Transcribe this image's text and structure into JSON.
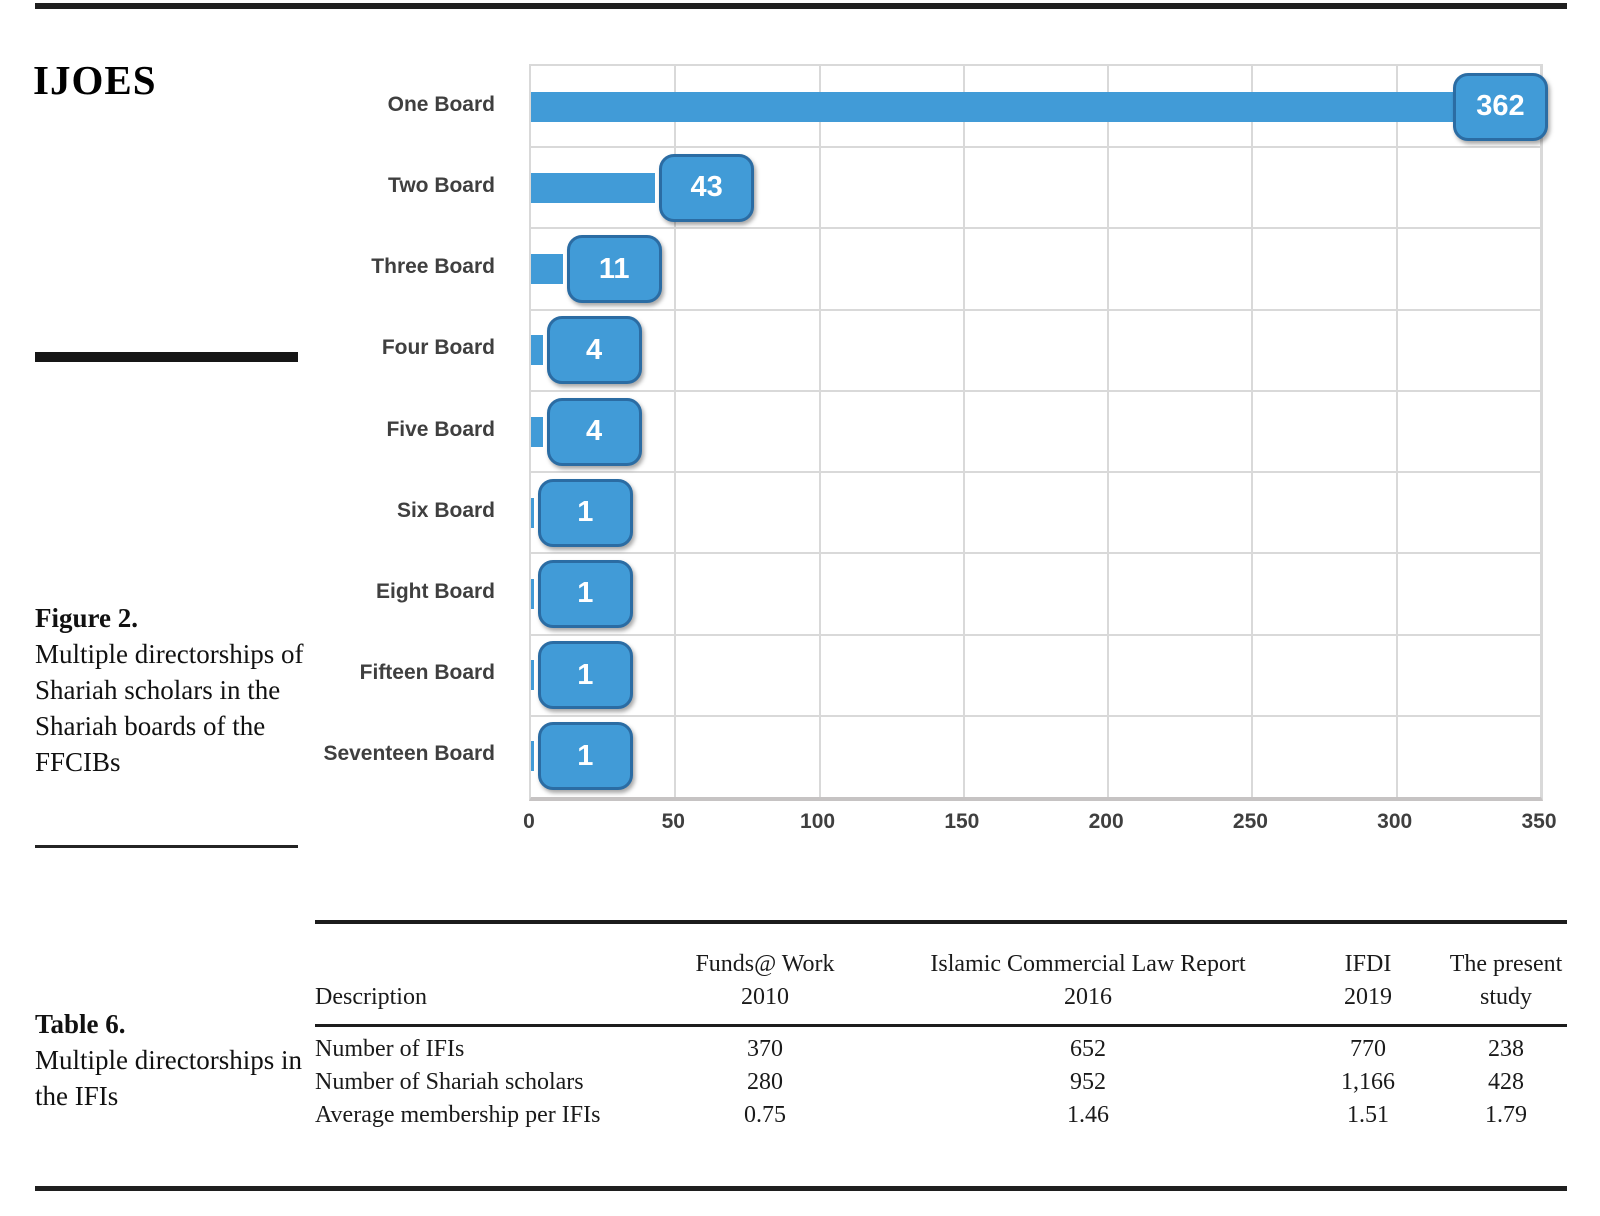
{
  "journal_title": "IJOES",
  "figure": {
    "label": "Figure 2.",
    "caption": "Multiple directorships of Shariah scholars in the Shariah boards of the FFCIBs"
  },
  "table_caption": {
    "label": "Table 6.",
    "caption": "Multiple directorships in the IFIs"
  },
  "chart_data": {
    "type": "bar",
    "orientation": "horizontal",
    "categories": [
      "One Board",
      "Two Board",
      "Three Board",
      "Four Board",
      "Five Board",
      "Six Board",
      "Eight Board",
      "Fifteen Board",
      "Seventeen Board"
    ],
    "values": [
      362,
      43,
      11,
      4,
      4,
      1,
      1,
      1,
      1
    ],
    "x_ticks": [
      0,
      50,
      100,
      150,
      200,
      250,
      300,
      350
    ],
    "xlim": [
      0,
      350
    ],
    "grid": true,
    "legend": "none",
    "bar_color": "#419bd7",
    "callout_border_color": "#2b6ca3",
    "label_color": "#3f3f3f"
  },
  "table": {
    "col_headers": [
      [
        "Description"
      ],
      [
        "Funds@ Work",
        "2010"
      ],
      [
        "Islamic Commercial Law Report",
        "2016"
      ],
      [
        "IFDI",
        "2019"
      ],
      [
        "The present",
        "study"
      ]
    ],
    "rows": [
      {
        "description": "Number of IFIs",
        "values": [
          "370",
          "652",
          "770",
          "238"
        ]
      },
      {
        "description": "Number of Shariah scholars",
        "values": [
          "280",
          "952",
          "1,166",
          "428"
        ]
      },
      {
        "description": "Average membership per IFIs",
        "values": [
          "0.75",
          "1.46",
          "1.51",
          "1.79"
        ]
      }
    ]
  }
}
